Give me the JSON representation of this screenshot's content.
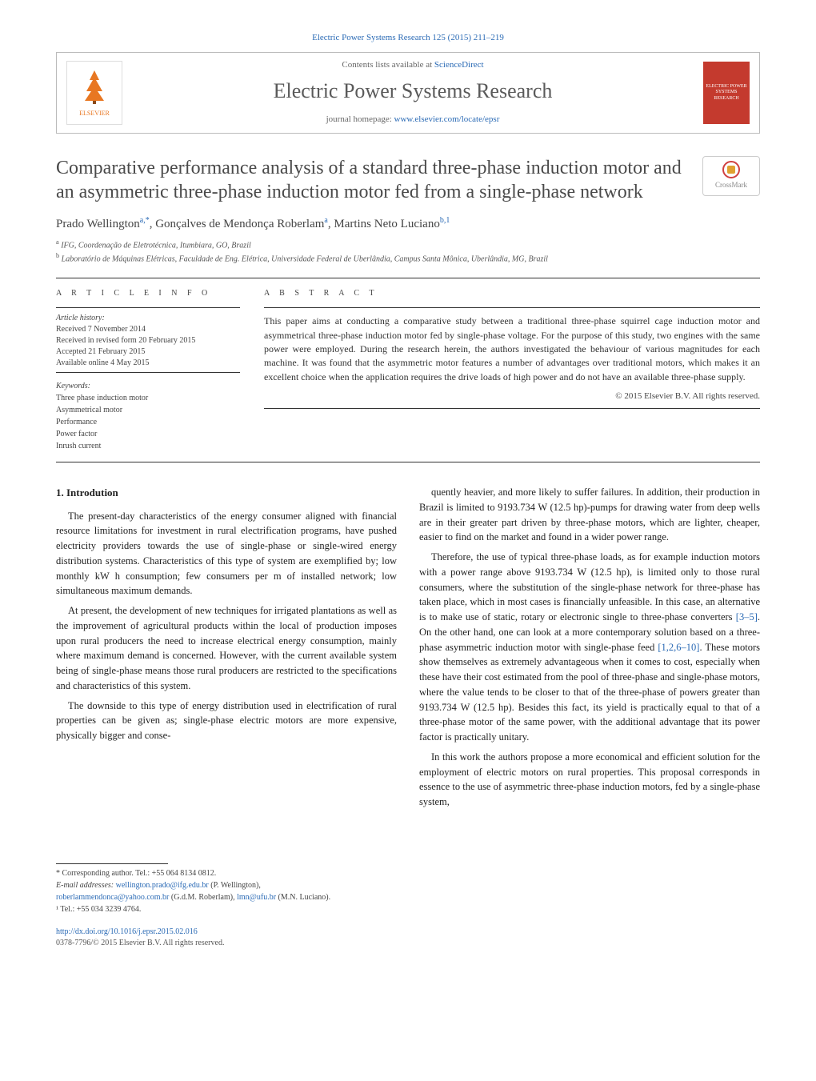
{
  "top_citation": {
    "journal_link_text": "Electric Power Systems Research 125 (2015) 211–219"
  },
  "header": {
    "contents_prefix": "Contents lists available at ",
    "contents_link": "ScienceDirect",
    "journal_name": "Electric Power Systems Research",
    "homepage_prefix": "journal homepage: ",
    "homepage_link": "www.elsevier.com/locate/epsr",
    "elsevier_label": "ELSEVIER",
    "cover_label": "ELECTRIC POWER SYSTEMS RESEARCH",
    "cover_bg": "#c43a2e",
    "cover_color": "#ffffff"
  },
  "article": {
    "title": "Comparative performance analysis of a standard three-phase induction motor and an asymmetric three-phase induction motor fed from a single-phase network",
    "crossmark_label": "CrossMark",
    "authors_html": "Prado Wellington<sup>a,*</sup>, Gonçalves de Mendonça Roberlam<sup>a</sup>, Martins Neto Luciano<sup>b,1</sup>",
    "affiliations": [
      "IFG, Coordenação de Eletrotécnica, Itumbiara, GO, Brazil",
      "Laboratório de Máquinas Elétricas, Faculdade de Eng. Elétrica, Universidade Federal de Uberlândia, Campus Santa Mônica, Uberlândia, MG, Brazil"
    ]
  },
  "info": {
    "label": "A R T I C L E   I N F O",
    "history_label": "Article history:",
    "history": [
      "Received 7 November 2014",
      "Received in revised form 20 February 2015",
      "Accepted 21 February 2015",
      "Available online 4 May 2015"
    ],
    "keywords_label": "Keywords:",
    "keywords": [
      "Three phase induction motor",
      "Asymmetrical motor",
      "Performance",
      "Power factor",
      "Inrush current"
    ]
  },
  "abstract": {
    "label": "A B S T R A C T",
    "text": "This paper aims at conducting a comparative study between a traditional three-phase squirrel cage induction motor and asymmetrical three-phase induction motor fed by single-phase voltage. For the purpose of this study, two engines with the same power were employed. During the research herein, the authors investigated the behaviour of various magnitudes for each machine. It was found that the asymmetric motor features a number of advantages over traditional motors, which makes it an excellent choice when the application requires the drive loads of high power and do not have an available three-phase supply.",
    "copyright": "© 2015 Elsevier B.V. All rights reserved."
  },
  "body": {
    "section_heading": "1. Introdution",
    "paragraphs": [
      "The present-day characteristics of the energy consumer aligned with financial resource limitations for investment in rural electrification programs, have pushed electricity providers towards the use of single-phase or single-wired energy distribution systems. Characteristics of this type of system are exemplified by; low monthly kW h consumption; few consumers per m of installed network; low simultaneous maximum demands.",
      "At present, the development of new techniques for irrigated plantations as well as the improvement of agricultural products within the local of production imposes upon rural producers the need to increase electrical energy consumption, mainly where maximum demand is concerned. However, with the current available system being of single-phase means those rural producers are restricted to the specifications and characteristics of this system.",
      "The downside to this type of energy distribution used in electrification of rural properties can be given as; single-phase electric motors are more expensive, physically bigger and conse-",
      "quently heavier, and more likely to suffer failures. In addition, their production in Brazil is limited to 9193.734 W (12.5 hp)-pumps for drawing water from deep wells are in their greater part driven by three-phase motors, which are lighter, cheaper, easier to find on the market and found in a wider power range.",
      "Therefore, the use of typical three-phase loads, as for example induction motors with a power range above 9193.734 W (12.5 hp), is limited only to those rural consumers, where the substitution of the single-phase network for three-phase has taken place, which in most cases is financially unfeasible. In this case, an alternative is to make use of static, rotary or electronic single to three-phase converters <a class=\"ref\" data-name=\"citation-link\" data-interactable=\"true\">[3–5]</a>. On the other hand, one can look at a more contemporary solution based on a three-phase asymmetric induction motor with single-phase feed <a class=\"ref\" data-name=\"citation-link\" data-interactable=\"true\">[1,2,6–10]</a>. These motors show themselves as extremely advantageous when it comes to cost, especially when these have their cost estimated from the pool of three-phase and single-phase motors, where the value tends to be closer to that of the three-phase of powers greater than 9193.734 W (12.5 hp). Besides this fact, its yield is practically equal to that of a three-phase motor of the same power, with the additional advantage that its power factor is practically unitary.",
      "In this work the authors propose a more economical and efficient solution for the employment of electric motors on rural properties. This proposal corresponds in essence to the use of asymmetric three-phase induction motors, fed by a single-phase system,"
    ]
  },
  "footnotes": {
    "corresponding": "* Corresponding author. Tel.: +55 064 8134 0812.",
    "email_label": "E-mail addresses: ",
    "emails": [
      {
        "addr": "wellington.prado@ifg.edu.br",
        "who": "(P. Wellington),"
      },
      {
        "addr": "roberlammendonca@yahoo.com.br",
        "who": "(G.d.M. Roberlam),"
      },
      {
        "addr": "lmn@ufu.br",
        "who": "(M.N. Luciano)."
      }
    ],
    "tel_note": "¹ Tel.: +55 034 3239 4764."
  },
  "doi": {
    "link": "http://dx.doi.org/10.1016/j.epsr.2015.02.016",
    "issn_line": "0378-7796/© 2015 Elsevier B.V. All rights reserved."
  },
  "colors": {
    "link": "#2a6ab5",
    "text": "#333333",
    "rule": "#333333"
  }
}
